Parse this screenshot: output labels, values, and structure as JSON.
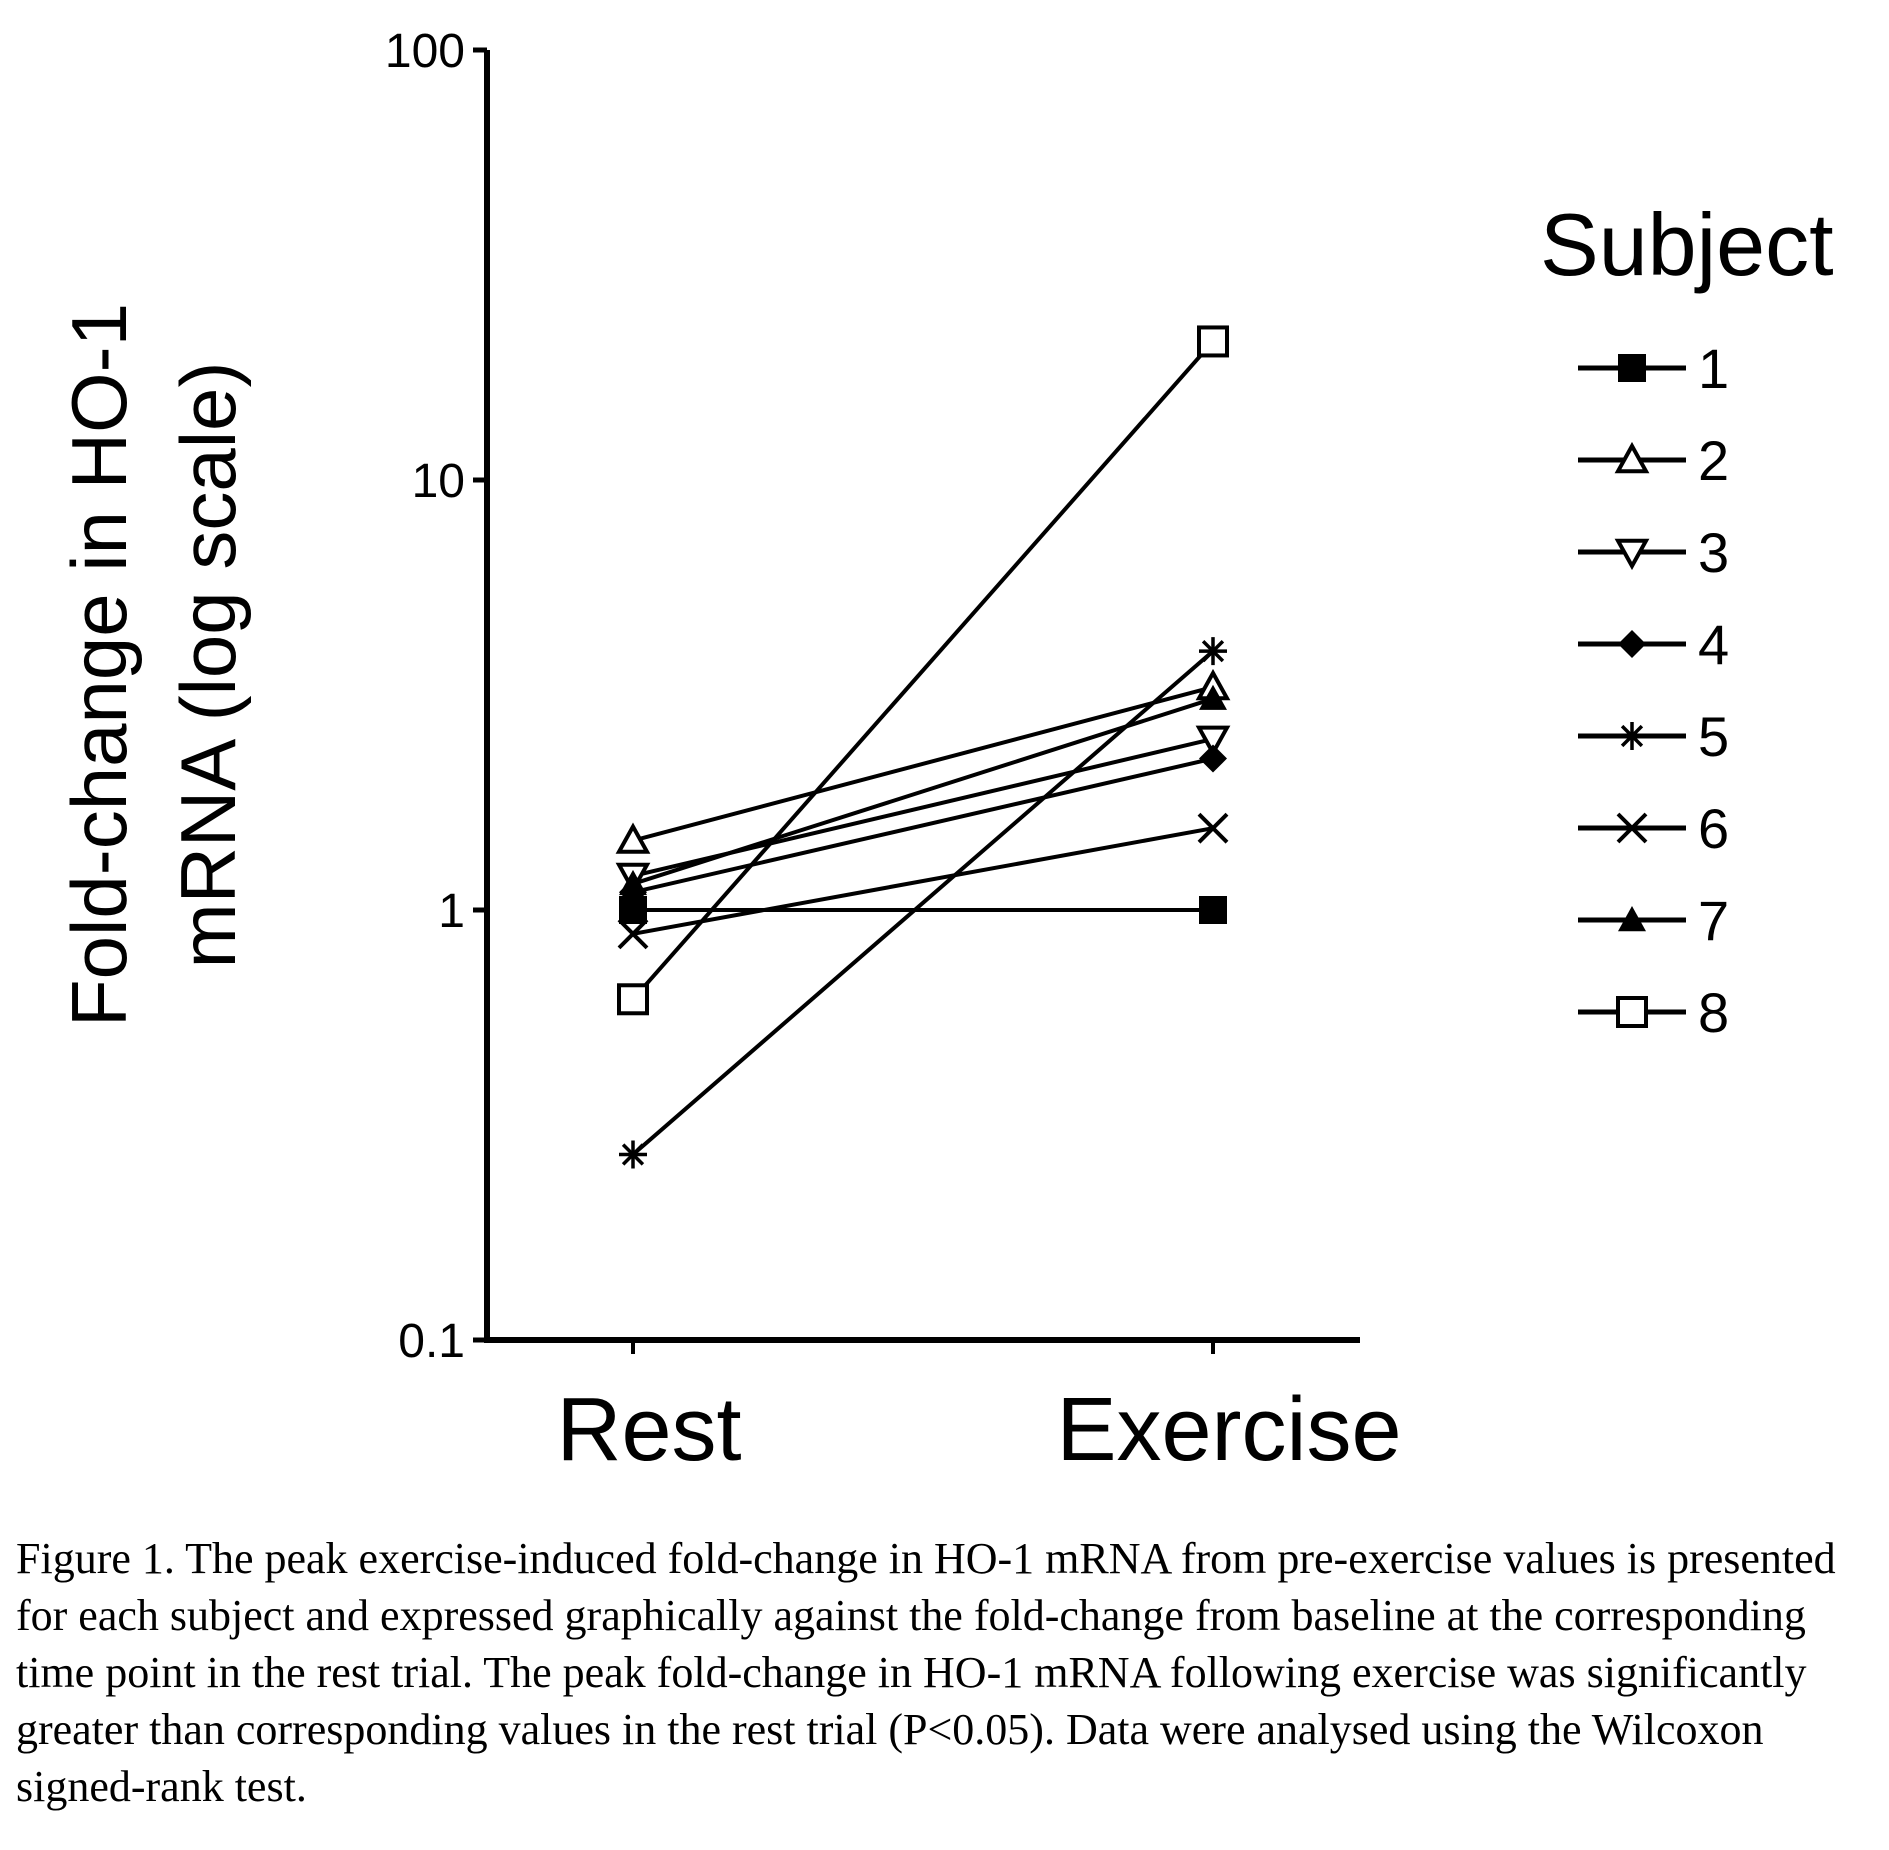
{
  "chart_data": {
    "type": "line",
    "ylabel": "Fold-change in HO-1 mRNA (log scale)",
    "yscale": "log",
    "ylim": [
      0.1,
      100
    ],
    "yticks": [
      "0.1",
      "1",
      "10",
      "100"
    ],
    "categories": [
      "Rest",
      "Exercise"
    ],
    "legend_title": "Subject",
    "legend_position": "right",
    "grid": false,
    "series": [
      {
        "name": "1",
        "marker": "filled-square",
        "values": [
          1.0,
          1.0
        ]
      },
      {
        "name": "2",
        "marker": "open-triangle-up",
        "values": [
          1.45,
          3.3
        ]
      },
      {
        "name": "3",
        "marker": "open-triangle-down",
        "values": [
          1.2,
          2.5
        ]
      },
      {
        "name": "4",
        "marker": "filled-diamond",
        "values": [
          1.1,
          2.25
        ]
      },
      {
        "name": "5",
        "marker": "asterisk",
        "values": [
          0.27,
          4.0
        ]
      },
      {
        "name": "6",
        "marker": "x",
        "values": [
          0.88,
          1.55
        ]
      },
      {
        "name": "7",
        "marker": "filled-triangle-up",
        "values": [
          1.15,
          3.1
        ]
      },
      {
        "name": "8",
        "marker": "open-square",
        "values": [
          0.62,
          21.0
        ]
      }
    ]
  },
  "caption": "Figure 1. The peak exercise-induced fold-change in HO-1 mRNA from pre-exercise values is presented for each subject and expressed graphically against the fold-change from baseline at the corresponding time point in the rest trial. The peak fold-change in HO-1 mRNA following exercise was significantly greater than corresponding values in the rest trial (P<0.05). Data were analysed using the Wilcoxon signed-rank test."
}
